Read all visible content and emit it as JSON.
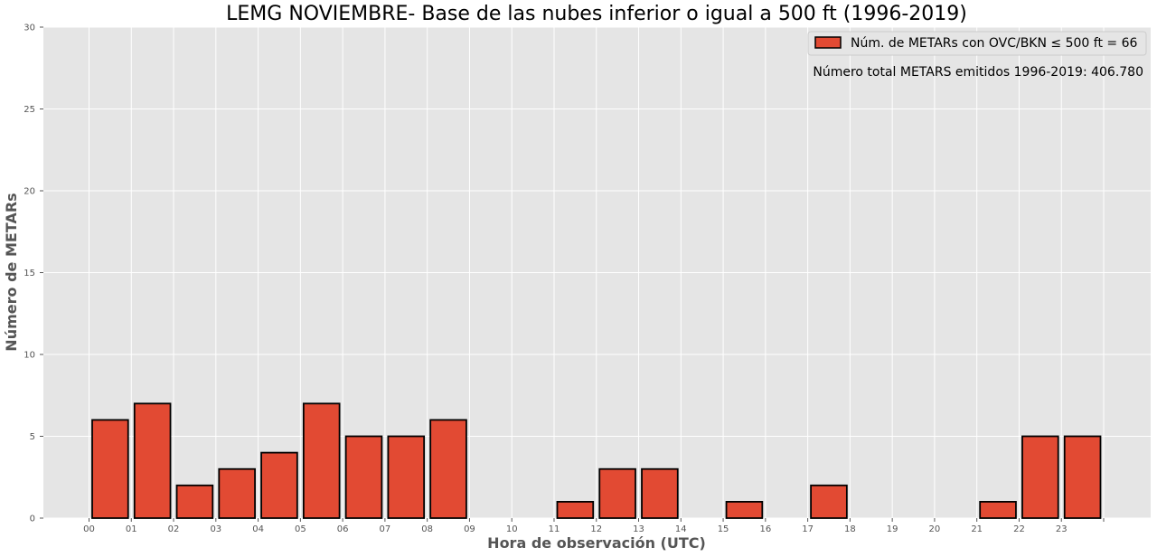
{
  "chart_data": {
    "type": "bar",
    "title": "LEMG NOVIEMBRE- Base de las nubes inferior o igual a 500 ft (1996-2019)",
    "xlabel": "Hora de observación (UTC)",
    "ylabel": "Número de METARs",
    "categories": [
      "00",
      "01",
      "02",
      "03",
      "04",
      "05",
      "06",
      "07",
      "08",
      "09",
      "10",
      "11",
      "12",
      "13",
      "14",
      "15",
      "16",
      "17",
      "18",
      "19",
      "20",
      "21",
      "22",
      "23"
    ],
    "x_tick_labels": [
      "00",
      "01",
      "02",
      "03",
      "04",
      "05",
      "06",
      "07",
      "08",
      "09",
      "10",
      "11",
      "12",
      "13",
      "14",
      "15",
      "16",
      "17",
      "18",
      "19",
      "20",
      "21",
      "22",
      "23",
      ""
    ],
    "values": [
      6,
      7,
      2,
      3,
      4,
      7,
      5,
      5,
      6,
      0,
      0,
      1,
      3,
      3,
      0,
      1,
      0,
      2,
      0,
      0,
      0,
      1,
      5,
      5
    ],
    "ylim": [
      0,
      30
    ],
    "yticks": [
      "0",
      "5",
      "10",
      "15",
      "20",
      "25",
      "30"
    ],
    "grid": true,
    "legend": {
      "label": "Núm. de METARs con OVC/BKN ≤ 500 ft = 66",
      "position": "top-right"
    },
    "annotation": "Número total METARS emitidos 1996-2019:  406.780",
    "colors": {
      "bar_fill": "#e24a33",
      "bar_edge": "#000000",
      "plot_bg": "#e5e5e5",
      "grid": "#ffffff"
    }
  }
}
